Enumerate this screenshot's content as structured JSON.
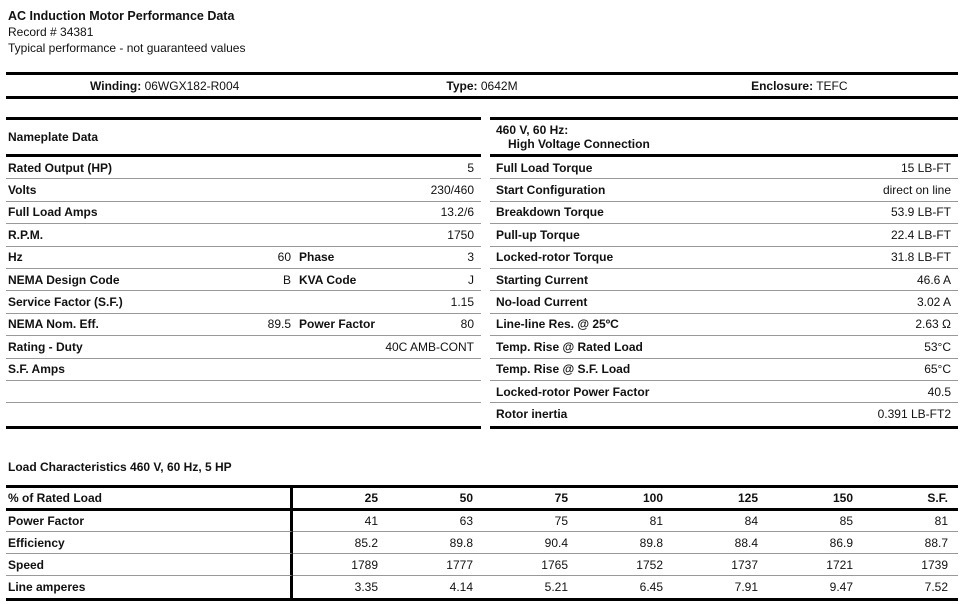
{
  "colors": {
    "background": "#ffffff",
    "text": "#111111",
    "rule_thick": "#000000",
    "rule_thin": "#999999"
  },
  "header": {
    "title": "AC Induction Motor Performance Data",
    "record": "Record # 34381",
    "note": "Typical performance - not guaranteed values"
  },
  "winding_band": {
    "winding_label": "Winding:",
    "winding_value": "06WGX182-R004",
    "type_label": "Type:",
    "type_value": "0642M",
    "enclosure_label": "Enclosure:",
    "enclosure_value": "TEFC"
  },
  "nameplate": {
    "title": "Nameplate Data",
    "rows": [
      {
        "label": "Rated Output (HP)",
        "mid_value": "",
        "mid_label": "",
        "value": "5"
      },
      {
        "label": "Volts",
        "mid_value": "",
        "mid_label": "",
        "value": "230/460"
      },
      {
        "label": "Full Load Amps",
        "mid_value": "",
        "mid_label": "",
        "value": "13.2/6"
      },
      {
        "label": "R.P.M.",
        "mid_value": "",
        "mid_label": "",
        "value": "1750"
      },
      {
        "label": "Hz",
        "mid_value": "60",
        "mid_label": "Phase",
        "value": "3"
      },
      {
        "label": "NEMA Design Code",
        "mid_value": "B",
        "mid_label": "KVA Code",
        "value": "J"
      },
      {
        "label": "Service Factor (S.F.)",
        "mid_value": "",
        "mid_label": "",
        "value": "1.15"
      },
      {
        "label": "NEMA Nom. Eff.",
        "mid_value": "89.5",
        "mid_label": "Power Factor",
        "value": "80"
      },
      {
        "label": "Rating - Duty",
        "mid_value": "",
        "mid_label": "",
        "value": "40C AMB-CONT"
      },
      {
        "label": "S.F. Amps",
        "mid_value": "",
        "mid_label": "",
        "value": ""
      }
    ]
  },
  "high_voltage": {
    "title_line1": "460 V, 60 Hz:",
    "title_line2": "High Voltage Connection",
    "rows": [
      {
        "label": "Full Load Torque",
        "value": "15 LB-FT"
      },
      {
        "label": "Start Configuration",
        "value": "direct on line"
      },
      {
        "label": "Breakdown Torque",
        "value": "53.9 LB-FT"
      },
      {
        "label": "Pull-up Torque",
        "value": "22.4 LB-FT"
      },
      {
        "label": "Locked-rotor Torque",
        "value": "31.8 LB-FT"
      },
      {
        "label": "Starting Current",
        "value": "46.6 A"
      },
      {
        "label": "No-load Current",
        "value": "3.02 A"
      },
      {
        "label": "Line-line Res. @ 25ºC",
        "value": "2.63 Ω"
      },
      {
        "label": "Temp. Rise @ Rated Load",
        "value": "53°C"
      },
      {
        "label": "Temp. Rise @ S.F. Load",
        "value": "65°C"
      },
      {
        "label": "Locked-rotor Power Factor",
        "value": "40.5"
      },
      {
        "label": "Rotor inertia",
        "value": "0.391 LB-FT2"
      }
    ]
  },
  "load_characteristics": {
    "title": "Load Characteristics 460 V, 60 Hz, 5 HP",
    "corner_header": "% of Rated Load",
    "col_headers": [
      "25",
      "50",
      "75",
      "100",
      "125",
      "150",
      "S.F."
    ],
    "rows": [
      {
        "label": "Power Factor",
        "values": [
          "41",
          "63",
          "75",
          "81",
          "84",
          "85",
          "81"
        ]
      },
      {
        "label": "Efficiency",
        "values": [
          "85.2",
          "89.8",
          "90.4",
          "89.8",
          "88.4",
          "86.9",
          "88.7"
        ]
      },
      {
        "label": "Speed",
        "values": [
          "1789",
          "1777",
          "1765",
          "1752",
          "1737",
          "1721",
          "1739"
        ]
      },
      {
        "label": "Line amperes",
        "values": [
          "3.35",
          "4.14",
          "5.21",
          "6.45",
          "7.91",
          "9.47",
          "7.52"
        ]
      }
    ]
  }
}
